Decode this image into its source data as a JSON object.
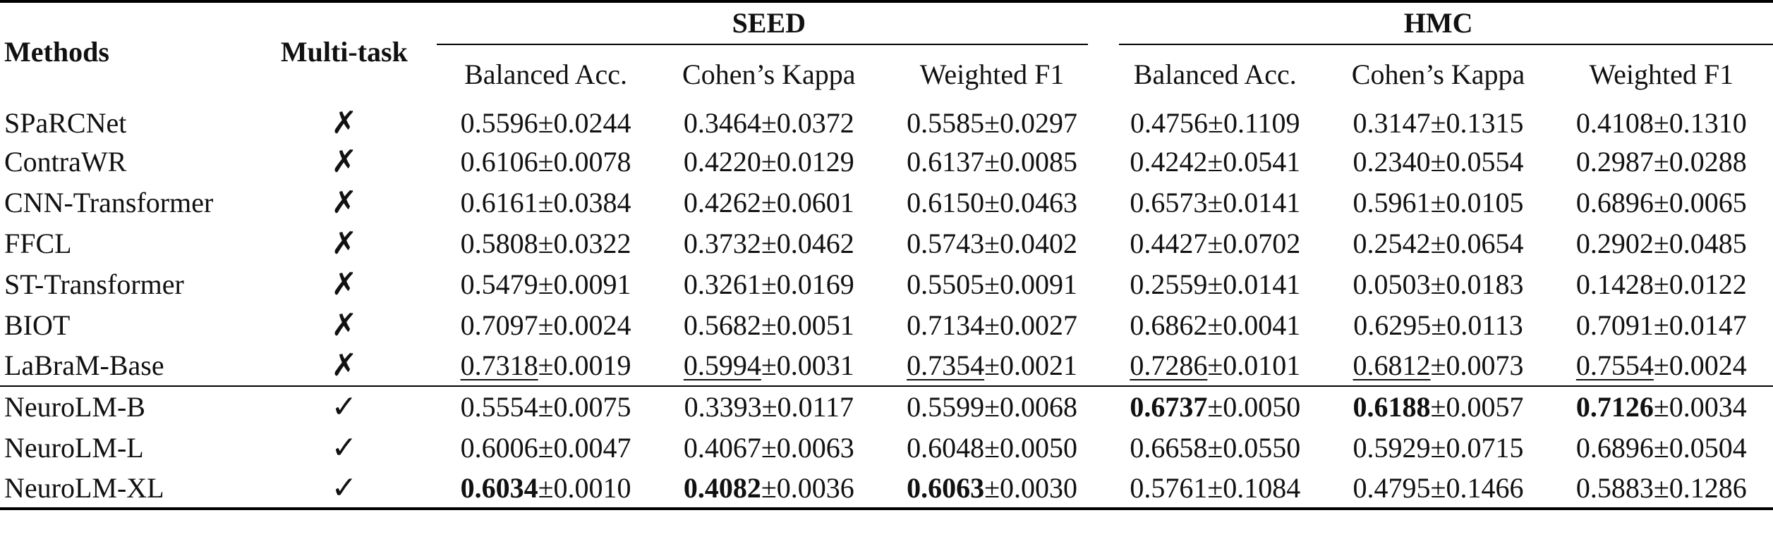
{
  "headers": {
    "methods": "Methods",
    "multitask": "Multi-task",
    "groups": [
      "SEED",
      "HMC"
    ],
    "metrics": [
      "Balanced Acc.",
      "Cohen’s Kappa",
      "Weighted F1"
    ]
  },
  "symbols": {
    "no": "✗",
    "yes": "✓"
  },
  "rows": [
    {
      "name": "SPaRCNet",
      "multitask": "✗",
      "cells": [
        {
          "main": "0.5596",
          "pm": "±0.0244",
          "bold": false,
          "underline": false
        },
        {
          "main": "0.3464",
          "pm": "±0.0372",
          "bold": false,
          "underline": false
        },
        {
          "main": "0.5585",
          "pm": "±0.0297",
          "bold": false,
          "underline": false
        },
        {
          "main": "0.4756",
          "pm": "±0.1109",
          "bold": false,
          "underline": false
        },
        {
          "main": "0.3147",
          "pm": "±0.1315",
          "bold": false,
          "underline": false
        },
        {
          "main": "0.4108",
          "pm": "±0.1310",
          "bold": false,
          "underline": false
        }
      ]
    },
    {
      "name": "ContraWR",
      "multitask": "✗",
      "cells": [
        {
          "main": "0.6106",
          "pm": "±0.0078",
          "bold": false,
          "underline": false
        },
        {
          "main": "0.4220",
          "pm": "±0.0129",
          "bold": false,
          "underline": false
        },
        {
          "main": "0.6137",
          "pm": "±0.0085",
          "bold": false,
          "underline": false
        },
        {
          "main": "0.4242",
          "pm": "±0.0541",
          "bold": false,
          "underline": false
        },
        {
          "main": "0.2340",
          "pm": "±0.0554",
          "bold": false,
          "underline": false
        },
        {
          "main": "0.2987",
          "pm": "±0.0288",
          "bold": false,
          "underline": false
        }
      ]
    },
    {
      "name": "CNN-Transformer",
      "multitask": "✗",
      "cells": [
        {
          "main": "0.6161",
          "pm": "±0.0384",
          "bold": false,
          "underline": false
        },
        {
          "main": "0.4262",
          "pm": "±0.0601",
          "bold": false,
          "underline": false
        },
        {
          "main": "0.6150",
          "pm": "±0.0463",
          "bold": false,
          "underline": false
        },
        {
          "main": "0.6573",
          "pm": "±0.0141",
          "bold": false,
          "underline": false
        },
        {
          "main": "0.5961",
          "pm": "±0.0105",
          "bold": false,
          "underline": false
        },
        {
          "main": "0.6896",
          "pm": "±0.0065",
          "bold": false,
          "underline": false
        }
      ]
    },
    {
      "name": "FFCL",
      "multitask": "✗",
      "cells": [
        {
          "main": "0.5808",
          "pm": "±0.0322",
          "bold": false,
          "underline": false
        },
        {
          "main": "0.3732",
          "pm": "±0.0462",
          "bold": false,
          "underline": false
        },
        {
          "main": "0.5743",
          "pm": "±0.0402",
          "bold": false,
          "underline": false
        },
        {
          "main": "0.4427",
          "pm": "±0.0702",
          "bold": false,
          "underline": false
        },
        {
          "main": "0.2542",
          "pm": "±0.0654",
          "bold": false,
          "underline": false
        },
        {
          "main": "0.2902",
          "pm": "±0.0485",
          "bold": false,
          "underline": false
        }
      ]
    },
    {
      "name": "ST-Transformer",
      "multitask": "✗",
      "cells": [
        {
          "main": "0.5479",
          "pm": "±0.0091",
          "bold": false,
          "underline": false
        },
        {
          "main": "0.3261",
          "pm": "±0.0169",
          "bold": false,
          "underline": false
        },
        {
          "main": "0.5505",
          "pm": "±0.0091",
          "bold": false,
          "underline": false
        },
        {
          "main": "0.2559",
          "pm": "±0.0141",
          "bold": false,
          "underline": false
        },
        {
          "main": "0.0503",
          "pm": "±0.0183",
          "bold": false,
          "underline": false
        },
        {
          "main": "0.1428",
          "pm": "±0.0122",
          "bold": false,
          "underline": false
        }
      ]
    },
    {
      "name": "BIOT",
      "multitask": "✗",
      "cells": [
        {
          "main": "0.7097",
          "pm": "±0.0024",
          "bold": false,
          "underline": false
        },
        {
          "main": "0.5682",
          "pm": "±0.0051",
          "bold": false,
          "underline": false
        },
        {
          "main": "0.7134",
          "pm": "±0.0027",
          "bold": false,
          "underline": false
        },
        {
          "main": "0.6862",
          "pm": "±0.0041",
          "bold": false,
          "underline": false
        },
        {
          "main": "0.6295",
          "pm": "±0.0113",
          "bold": false,
          "underline": false
        },
        {
          "main": "0.7091",
          "pm": "±0.0147",
          "bold": false,
          "underline": false
        }
      ]
    },
    {
      "name": "LaBraM-Base",
      "multitask": "✗",
      "cells": [
        {
          "main": "0.7318",
          "pm": "±0.0019",
          "bold": false,
          "underline": true
        },
        {
          "main": "0.5994",
          "pm": "±0.0031",
          "bold": false,
          "underline": true
        },
        {
          "main": "0.7354",
          "pm": "±0.0021",
          "bold": false,
          "underline": true
        },
        {
          "main": "0.7286",
          "pm": "±0.0101",
          "bold": false,
          "underline": true
        },
        {
          "main": "0.6812",
          "pm": "±0.0073",
          "bold": false,
          "underline": true
        },
        {
          "main": "0.7554",
          "pm": "±0.0024",
          "bold": false,
          "underline": true
        }
      ]
    },
    {
      "name": "NeuroLM-B",
      "multitask": "✓",
      "cells": [
        {
          "main": "0.5554",
          "pm": "±0.0075",
          "bold": false,
          "underline": false
        },
        {
          "main": "0.3393",
          "pm": "±0.0117",
          "bold": false,
          "underline": false
        },
        {
          "main": "0.5599",
          "pm": "±0.0068",
          "bold": false,
          "underline": false
        },
        {
          "main": "0.6737",
          "pm": "±0.0050",
          "bold": true,
          "underline": false
        },
        {
          "main": "0.6188",
          "pm": "±0.0057",
          "bold": true,
          "underline": false
        },
        {
          "main": "0.7126",
          "pm": "±0.0034",
          "bold": true,
          "underline": false
        }
      ]
    },
    {
      "name": "NeuroLM-L",
      "multitask": "✓",
      "cells": [
        {
          "main": "0.6006",
          "pm": "±0.0047",
          "bold": false,
          "underline": false
        },
        {
          "main": "0.4067",
          "pm": "±0.0063",
          "bold": false,
          "underline": false
        },
        {
          "main": "0.6048",
          "pm": "±0.0050",
          "bold": false,
          "underline": false
        },
        {
          "main": "0.6658",
          "pm": "±0.0550",
          "bold": false,
          "underline": false
        },
        {
          "main": "0.5929",
          "pm": "±0.0715",
          "bold": false,
          "underline": false
        },
        {
          "main": "0.6896",
          "pm": "±0.0504",
          "bold": false,
          "underline": false
        }
      ]
    },
    {
      "name": "NeuroLM-XL",
      "multitask": "✓",
      "cells": [
        {
          "main": "0.6034",
          "pm": "±0.0010",
          "bold": true,
          "underline": false
        },
        {
          "main": "0.4082",
          "pm": "±0.0036",
          "bold": true,
          "underline": false
        },
        {
          "main": "0.6063",
          "pm": "±0.0030",
          "bold": true,
          "underline": false
        },
        {
          "main": "0.5761",
          "pm": "±0.1084",
          "bold": false,
          "underline": false
        },
        {
          "main": "0.4795",
          "pm": "±0.1466",
          "bold": false,
          "underline": false
        },
        {
          "main": "0.5883",
          "pm": "±0.1286",
          "bold": false,
          "underline": false
        }
      ]
    }
  ]
}
